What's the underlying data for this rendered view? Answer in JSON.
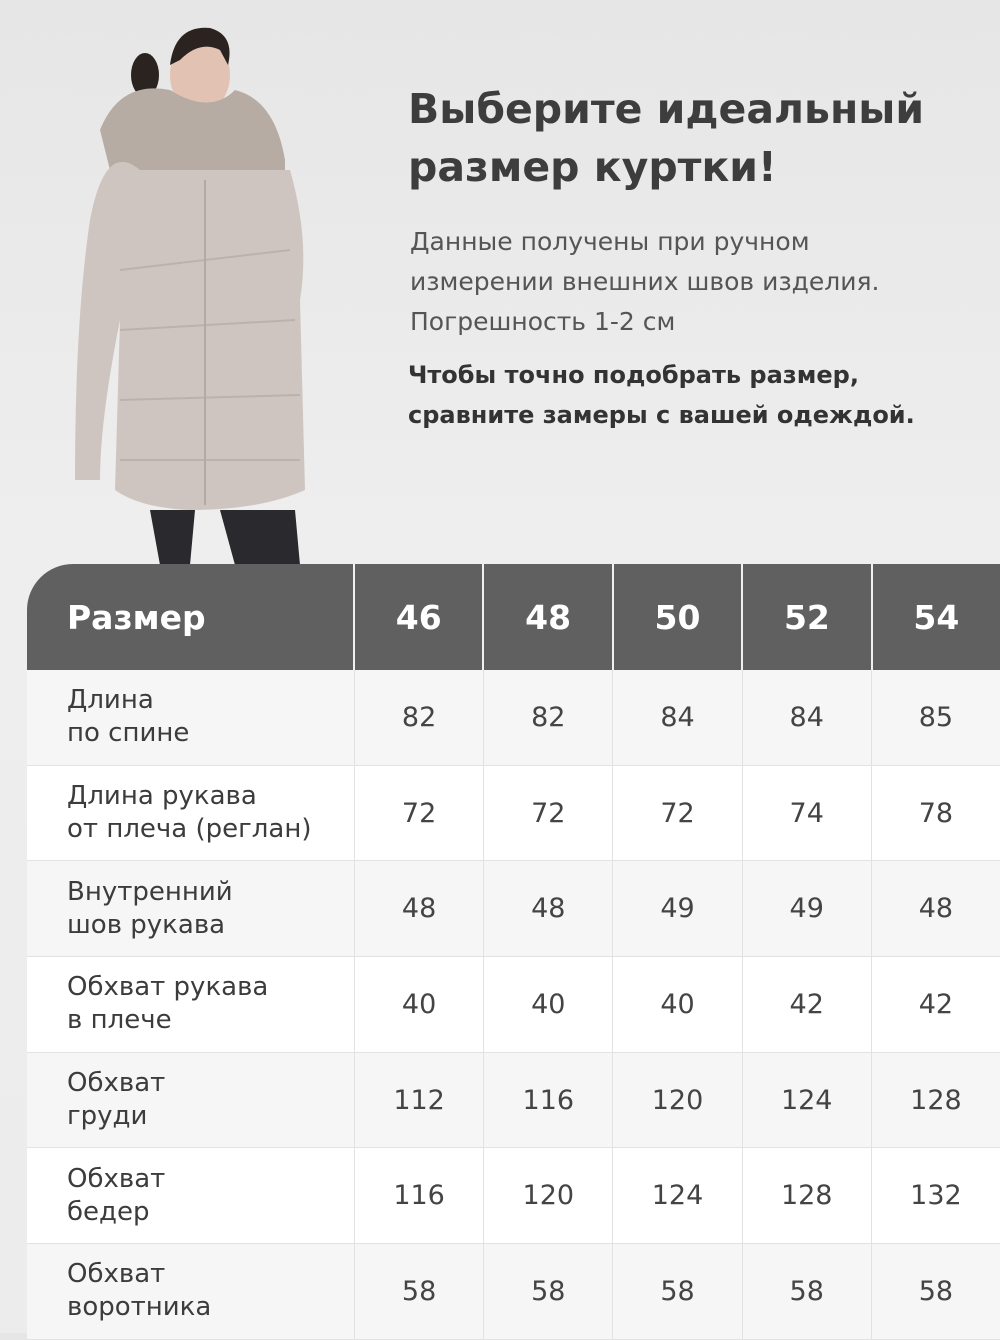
{
  "heading": {
    "title_line1": "Выберите идеальный",
    "title_line2": "размер куртки!"
  },
  "description": {
    "line1": "Данные получены при ручном",
    "line2": "измерении внешних швов изделия.",
    "line3": "Погрешность 1-2 см"
  },
  "note": {
    "line1": "Чтобы точно подобрать размер,",
    "line2": "сравните замеры с вашей одеждой."
  },
  "colors": {
    "header_bg": "#606060",
    "row_alt": "#f6f6f6",
    "jacket": "#cfc5c0"
  },
  "table": {
    "header": [
      "Размер",
      "46",
      "48",
      "50",
      "52",
      "54"
    ],
    "rows": [
      {
        "label": "Длина\nпо спине",
        "values": [
          "82",
          "82",
          "84",
          "84",
          "85"
        ]
      },
      {
        "label": "Длина рукава\nот плеча (реглан)",
        "values": [
          "72",
          "72",
          "72",
          "74",
          "78"
        ]
      },
      {
        "label": "Внутренний\nшов рукава",
        "values": [
          "48",
          "48",
          "49",
          "49",
          "48"
        ]
      },
      {
        "label": "Обхват рукава\nв плече",
        "values": [
          "40",
          "40",
          "40",
          "42",
          "42"
        ]
      },
      {
        "label": "Обхват\nгруди",
        "values": [
          "112",
          "116",
          "120",
          "124",
          "128"
        ]
      },
      {
        "label": "Обхват\nбедер",
        "values": [
          "116",
          "120",
          "124",
          "128",
          "132"
        ]
      },
      {
        "label": "Обхват\nворотника",
        "values": [
          "58",
          "58",
          "58",
          "58",
          "58"
        ]
      }
    ]
  }
}
